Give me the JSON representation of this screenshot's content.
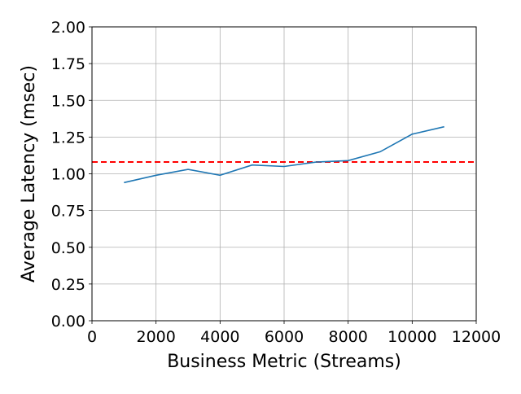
{
  "chart_data": {
    "type": "line",
    "title": "",
    "xlabel": "Business Metric (Streams)",
    "ylabel": "Average Latency (msec)",
    "xlim": [
      0,
      12000
    ],
    "ylim": [
      0,
      2.0
    ],
    "x_ticks": [
      0,
      2000,
      4000,
      6000,
      8000,
      10000,
      12000
    ],
    "y_ticks": [
      0.0,
      0.25,
      0.5,
      0.75,
      1.0,
      1.25,
      1.5,
      1.75,
      2.0
    ],
    "x_tick_labels": [
      "0",
      "2000",
      "4000",
      "6000",
      "8000",
      "10000",
      "12000"
    ],
    "y_tick_labels": [
      "0.00",
      "0.25",
      "0.50",
      "0.75",
      "1.00",
      "1.25",
      "1.50",
      "1.75",
      "2.00"
    ],
    "grid": true,
    "legend": "none",
    "series": [
      {
        "color": "#1f77b4",
        "x": [
          1000,
          2000,
          3000,
          4000,
          5000,
          6000,
          7000,
          8000,
          9000,
          10000,
          11000
        ],
        "y": [
          0.94,
          0.99,
          1.03,
          0.99,
          1.06,
          1.05,
          1.08,
          1.09,
          1.15,
          1.27,
          1.32
        ]
      }
    ],
    "reference_line": {
      "y": 1.08,
      "color": "#ff0000",
      "style": "dashed"
    }
  }
}
